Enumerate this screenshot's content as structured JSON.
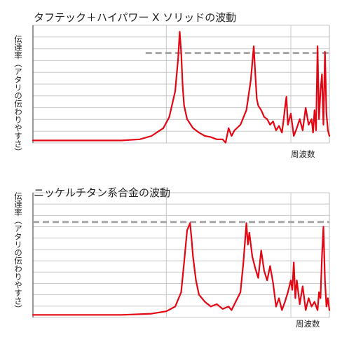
{
  "chart_data": [
    {
      "type": "line",
      "title": "タフテック＋ハイパワー X ソリッドの波動",
      "ylabel": "伝達率（アタリの伝わりやすさ）",
      "xlabel": "周波数",
      "grid": true,
      "color": "#e30613",
      "threshold_color": "#a6a6a6",
      "threshold": 0.79,
      "ylim": [
        0,
        1.0
      ],
      "xlim": [
        0,
        1.0
      ],
      "x": [
        0,
        0.1,
        0.2,
        0.3,
        0.36,
        0.4,
        0.44,
        0.46,
        0.48,
        0.49,
        0.495,
        0.5,
        0.505,
        0.51,
        0.52,
        0.54,
        0.56,
        0.58,
        0.6,
        0.62,
        0.64,
        0.65,
        0.66,
        0.67,
        0.68,
        0.7,
        0.72,
        0.735,
        0.745,
        0.75,
        0.755,
        0.76,
        0.77,
        0.78,
        0.79,
        0.8,
        0.81,
        0.82,
        0.83,
        0.84,
        0.845,
        0.85,
        0.855,
        0.86,
        0.87,
        0.88,
        0.89,
        0.9,
        0.91,
        0.92,
        0.93,
        0.94,
        0.945,
        0.95,
        0.955,
        0.96,
        0.965,
        0.97,
        0.975,
        0.98,
        0.985,
        0.99,
        0.995,
        1.0
      ],
      "y": [
        0.01,
        0.01,
        0.01,
        0.01,
        0.02,
        0.05,
        0.12,
        0.22,
        0.45,
        0.75,
        0.98,
        0.8,
        0.5,
        0.32,
        0.2,
        0.12,
        0.08,
        0.05,
        0.04,
        0.02,
        0.02,
        -0.01,
        0.12,
        0.05,
        0.1,
        0.15,
        0.28,
        0.55,
        0.85,
        0.6,
        0.38,
        0.32,
        0.28,
        0.22,
        0.2,
        0.15,
        0.18,
        0.1,
        0.14,
        0.08,
        0.18,
        0.3,
        0.4,
        0.15,
        0.25,
        0.05,
        0.12,
        0.2,
        0.1,
        0.3,
        0.15,
        0.2,
        0.08,
        0.28,
        0.1,
        0.85,
        0.2,
        0.45,
        0.6,
        0.15,
        0.8,
        0.25,
        0.1,
        0.05
      ]
    },
    {
      "type": "line",
      "title": "ニッケルチタン系合金の波動",
      "ylabel": "伝達率（アタリの伝わりやすさ）",
      "xlabel": "周波数",
      "grid": true,
      "color": "#e30613",
      "threshold_color": "#a6a6a6",
      "threshold": 0.79,
      "ylim": [
        0,
        1.0
      ],
      "xlim": [
        0,
        1.0
      ],
      "x": [
        0,
        0.1,
        0.2,
        0.3,
        0.4,
        0.45,
        0.48,
        0.5,
        0.51,
        0.52,
        0.53,
        0.535,
        0.54,
        0.55,
        0.56,
        0.58,
        0.6,
        0.62,
        0.64,
        0.66,
        0.67,
        0.68,
        0.7,
        0.71,
        0.72,
        0.725,
        0.73,
        0.74,
        0.75,
        0.76,
        0.77,
        0.78,
        0.79,
        0.8,
        0.81,
        0.82,
        0.83,
        0.84,
        0.85,
        0.86,
        0.87,
        0.875,
        0.88,
        0.885,
        0.89,
        0.9,
        0.91,
        0.92,
        0.93,
        0.94,
        0.95,
        0.96,
        0.965,
        0.97,
        0.975,
        0.98,
        0.985,
        0.99,
        0.995,
        1.0
      ],
      "y": [
        0.01,
        0.01,
        0.01,
        0.01,
        0.02,
        0.04,
        0.08,
        0.2,
        0.45,
        0.72,
        0.78,
        0.65,
        0.5,
        0.3,
        0.18,
        0.12,
        0.08,
        0.1,
        0.06,
        0.08,
        0.05,
        0.1,
        0.2,
        0.45,
        0.78,
        0.6,
        0.7,
        0.5,
        0.4,
        0.32,
        0.55,
        0.38,
        0.3,
        0.42,
        0.28,
        0.08,
        0.15,
        0.05,
        0.12,
        0.2,
        0.3,
        0.22,
        0.45,
        0.15,
        0.3,
        0.1,
        0.25,
        0.05,
        0.15,
        0.08,
        0.12,
        0.05,
        0.2,
        0.15,
        0.5,
        0.75,
        0.3,
        0.08,
        0.15,
        0.05
      ]
    }
  ]
}
